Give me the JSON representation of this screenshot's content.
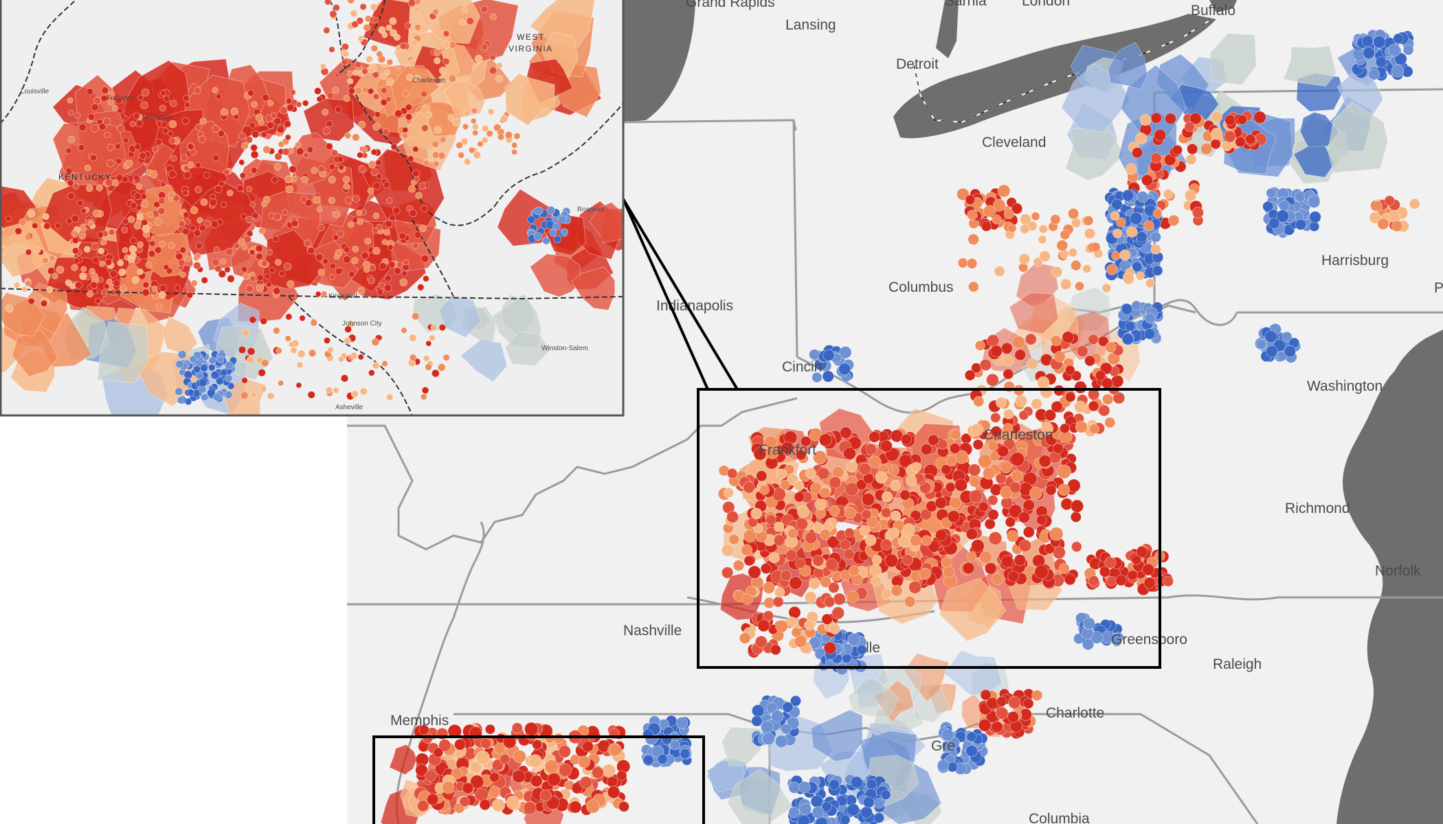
{
  "colors": {
    "land": "#f1f1f1",
    "water": "#6e6e6e",
    "border": "#9b9b9b",
    "red_dark": "#d42a1e",
    "red_mid": "#e2533f",
    "orange": "#f08b5a",
    "peach": "#f7b785",
    "blue_dark": "#3a67c4",
    "blue_mid": "#6d91d3",
    "blue_light": "#a9bfe3",
    "gray_green": "#c4cfca",
    "frame": "#000000"
  },
  "map": {
    "city_labels": [
      "Grand Rapids",
      "Lansing",
      "Sarnia",
      "London",
      "Buffalo",
      "Detroit",
      "Cleveland",
      "Columbus",
      "Harrisburg",
      "Indianapolis",
      "Cincin",
      "Washington",
      "Frankfort",
      "Charleston",
      "Richmond",
      "Norfolk",
      "Nashville",
      "Greensboro",
      "Raleigh",
      "Memphis",
      "Charlotte",
      "Gre",
      "Columbia",
      "P",
      "lle"
    ],
    "inset_labels": {
      "state_west_virginia": [
        "WEST",
        "VIRGINIA"
      ],
      "state_kentucky": "KENTUCKY",
      "cities": [
        "Louisville",
        "Frankfort",
        "Lexington",
        "Charleston",
        "Roanoke",
        "Kingsport",
        "Johnson City",
        "Winston-Salem",
        "Asheville"
      ]
    }
  }
}
